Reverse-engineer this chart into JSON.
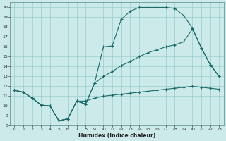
{
  "xlabel": "Humidex (Indice chaleur)",
  "bg_color": "#cceaea",
  "grid_color": "#99cccc",
  "line_color": "#1a6b6b",
  "xlim": [
    -0.5,
    23.5
  ],
  "ylim": [
    8,
    20.5
  ],
  "xticks": [
    0,
    1,
    2,
    3,
    4,
    5,
    6,
    7,
    8,
    9,
    10,
    11,
    12,
    13,
    14,
    15,
    16,
    17,
    18,
    19,
    20,
    21,
    22,
    23
  ],
  "yticks": [
    8,
    9,
    10,
    11,
    12,
    13,
    14,
    15,
    16,
    17,
    18,
    19,
    20
  ],
  "line1_x": [
    0,
    1,
    2,
    3,
    4,
    5,
    6,
    7,
    8,
    9,
    10,
    11,
    12,
    13,
    14,
    15,
    16,
    17,
    18,
    19,
    20,
    21,
    22,
    23
  ],
  "line1_y": [
    11.6,
    11.4,
    10.8,
    10.1,
    10.0,
    8.5,
    8.7,
    10.5,
    10.2,
    12.3,
    16.0,
    16.1,
    18.8,
    19.6,
    20.0,
    20.0,
    20.0,
    20.0,
    19.9,
    19.2,
    17.9,
    15.9,
    14.2,
    13.0
  ],
  "line2_x": [
    0,
    1,
    2,
    3,
    4,
    5,
    6,
    7,
    8,
    9,
    10,
    11,
    12,
    13,
    14,
    15,
    16,
    17,
    18,
    19,
    20,
    21,
    22,
    23
  ],
  "line2_y": [
    11.6,
    11.4,
    10.8,
    10.1,
    10.0,
    8.5,
    8.7,
    10.5,
    10.2,
    12.3,
    13.0,
    13.5,
    14.1,
    14.5,
    15.0,
    15.4,
    15.7,
    16.0,
    16.2,
    16.5,
    17.8,
    15.9,
    14.2,
    13.0
  ],
  "line3_x": [
    0,
    1,
    2,
    3,
    4,
    5,
    6,
    7,
    8,
    9,
    10,
    11,
    12,
    13,
    14,
    15,
    16,
    17,
    18,
    19,
    20,
    21,
    22,
    23
  ],
  "line3_y": [
    11.6,
    11.4,
    10.8,
    10.1,
    10.0,
    8.5,
    8.7,
    10.5,
    10.5,
    10.8,
    11.0,
    11.1,
    11.2,
    11.3,
    11.4,
    11.5,
    11.6,
    11.7,
    11.8,
    11.9,
    12.0,
    11.9,
    11.8,
    11.7
  ]
}
